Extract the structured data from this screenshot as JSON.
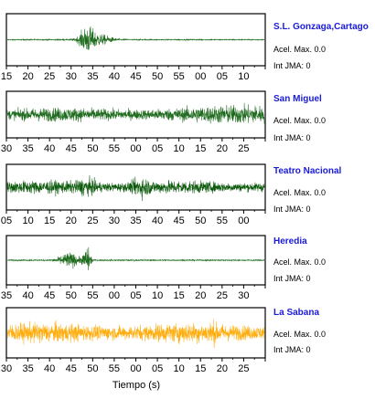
{
  "chart_data": {
    "type": "line",
    "xlabel": "Tiempo (s)",
    "panels": [
      {
        "station": "S.L. Gonzaga,Cartago",
        "acel_max": "Acel. Max. 0.0",
        "int_jma": "Int JMA: 0",
        "color": "#1e6b1e",
        "tick_labels": [
          "15",
          "20",
          "25",
          "30",
          "35",
          "40",
          "45",
          "50",
          "55",
          "00",
          "05",
          "10"
        ],
        "activity": "burst near 33-34 s, quiet elsewhere"
      },
      {
        "station": "San Miguel",
        "acel_max": "Acel. Max. 0.0",
        "int_jma": "Int JMA: 0",
        "color": "#1e6b1e",
        "tick_labels": [
          "30",
          "35",
          "40",
          "45",
          "50",
          "55",
          "00",
          "05",
          "10",
          "15",
          "20",
          "25"
        ],
        "activity": "continuous noise, growing toward end"
      },
      {
        "station": "Teatro Nacional",
        "acel_max": "Acel. Max. 0.0",
        "int_jma": "Int JMA: 0",
        "color": "#0d5a0d",
        "tick_labels": [
          "05",
          "10",
          "15",
          "20",
          "25",
          "30",
          "35",
          "40",
          "45",
          "50",
          "55",
          "00"
        ],
        "activity": "continuous noise with bursts near 20 s and 37 s"
      },
      {
        "station": "Heredia",
        "acel_max": "Acel. Max. 0.0",
        "int_jma": "Int JMA: 0",
        "color": "#1e6b1e",
        "tick_labels": [
          "35",
          "40",
          "45",
          "50",
          "55",
          "00",
          "05",
          "10",
          "15",
          "20",
          "25",
          "30"
        ],
        "activity": "burst near 45-49 s, quiet elsewhere"
      },
      {
        "station": "La Sabana",
        "acel_max": "Acel. Max. 0.0",
        "int_jma": "Int JMA: 0",
        "color": "#ffad0d",
        "tick_labels": [
          "30",
          "35",
          "40",
          "45",
          "50",
          "55",
          "00",
          "05",
          "10",
          "15",
          "20",
          "25"
        ],
        "activity": "continuous strong noise"
      }
    ]
  }
}
